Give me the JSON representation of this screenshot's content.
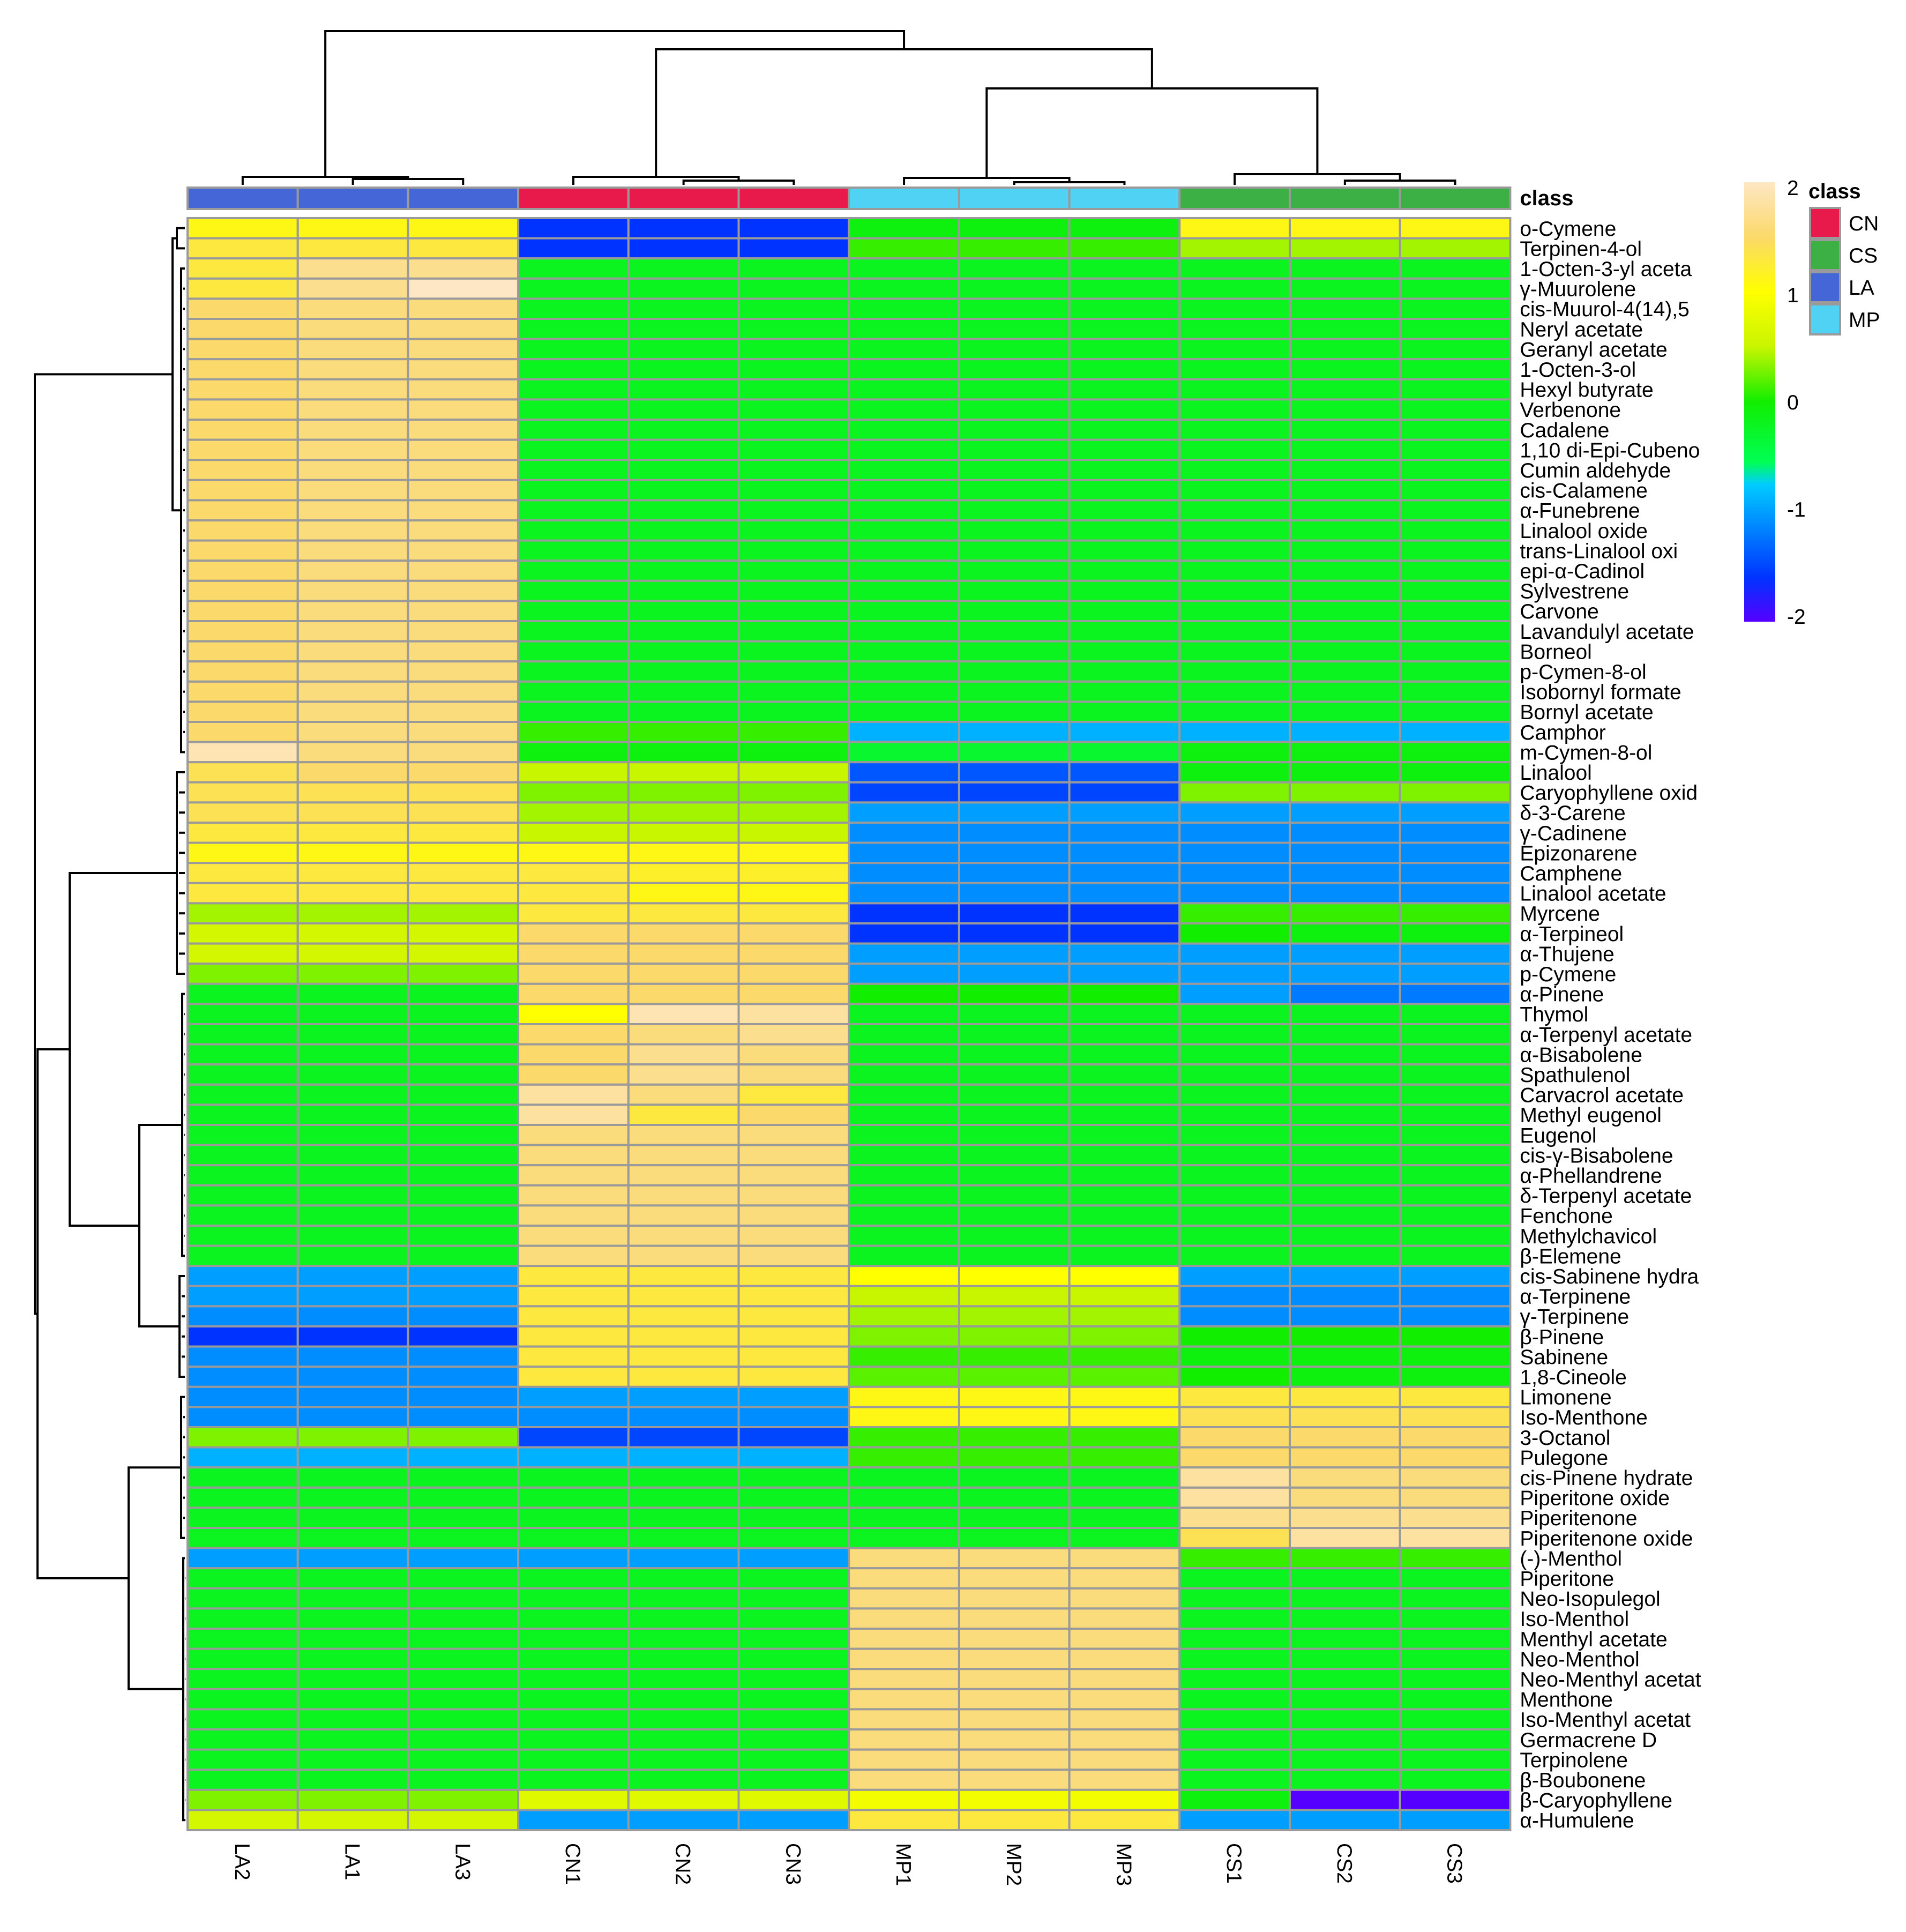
{
  "chart_data": {
    "type": "heatmap",
    "title": "",
    "columns": [
      "LA2",
      "LA1",
      "LA3",
      "CN1",
      "CN2",
      "CN3",
      "MP1",
      "MP2",
      "MP3",
      "CS1",
      "CS2",
      "CS3"
    ],
    "column_classes": [
      "LA",
      "LA",
      "LA",
      "CN",
      "CN",
      "CN",
      "MP",
      "MP",
      "MP",
      "CS",
      "CS",
      "CS"
    ],
    "rows": [
      "o-Cymene",
      "Terpinen-4-ol",
      "1-Octen-3-yl aceta",
      "γ-Muurolene",
      "cis-Muurol-4(14),5",
      "Neryl acetate",
      "Geranyl acetate",
      "1-Octen-3-ol",
      "Hexyl butyrate",
      "Verbenone",
      "Cadalene",
      "1,10 di-Epi-Cubeno",
      "Cumin aldehyde",
      "cis-Calamene",
      "α-Funebrene",
      "Linalool oxide",
      "trans-Linalool oxi",
      "epi-α-Cadinol",
      "Sylvestrene",
      "Carvone",
      "Lavandulyl acetate",
      "Borneol",
      "p-Cymen-8-ol",
      "Isobornyl formate",
      "Bornyl acetate",
      "Camphor",
      "m-Cymen-8-ol",
      "Linalool",
      "Caryophyllene oxid",
      "δ-3-Carene",
      "γ-Cadinene",
      "Epizonarene",
      "Camphene",
      "Linalool acetate",
      "Myrcene",
      "α-Terpineol",
      "α-Thujene",
      "p-Cymene",
      "α-Pinene",
      "Thymol",
      "α-Terpenyl acetate",
      "α-Bisabolene",
      "Spathulenol",
      "Carvacrol acetate",
      "Methyl eugenol",
      "Eugenol",
      "cis-γ-Bisabolene",
      "α-Phellandrene",
      "δ-Terpenyl acetate",
      "Fenchone",
      "Methylchavicol",
      "β-Elemene",
      "cis-Sabinene hydra",
      "α-Terpinene",
      "γ-Terpinene",
      "β-Pinene",
      "Sabinene",
      "1,8-Cineole",
      "Limonene",
      "Iso-Menthone",
      "3-Octanol",
      "Pulegone",
      "cis-Pinene hydrate",
      "Piperitone oxide",
      "Piperitenone",
      "Piperitenone oxide",
      "(-)-Menthol",
      "Piperitone",
      "Neo-Isopulegol",
      "Iso-Menthol",
      "Menthyl acetate",
      "Neo-Menthol",
      "Neo-Menthyl acetat",
      "Menthone",
      "Iso-Menthyl acetat",
      "Germacrene D",
      "Terpinolene",
      "β-Boubonene",
      "β-Caryophyllene",
      "α-Humulene"
    ],
    "values": [
      [
        1.1,
        1.1,
        1.1,
        -1.6,
        -1.6,
        -1.6,
        -0.1,
        -0.1,
        -0.1,
        1.1,
        1.1,
        1.1
      ],
      [
        1.3,
        1.3,
        1.3,
        -1.6,
        -1.6,
        -1.6,
        0.1,
        0.1,
        0.1,
        0.4,
        0.4,
        0.4
      ],
      [
        1.3,
        1.7,
        1.7,
        -0.2,
        -0.2,
        -0.2,
        -0.2,
        -0.2,
        -0.2,
        -0.2,
        -0.2,
        -0.2
      ],
      [
        1.3,
        1.7,
        2.0,
        -0.2,
        -0.2,
        -0.2,
        -0.2,
        -0.2,
        -0.2,
        -0.2,
        -0.2,
        -0.2
      ],
      [
        1.5,
        1.6,
        1.6,
        -0.2,
        -0.2,
        -0.2,
        -0.2,
        -0.2,
        -0.2,
        -0.2,
        -0.2,
        -0.2
      ],
      [
        1.5,
        1.6,
        1.6,
        -0.2,
        -0.2,
        -0.2,
        -0.2,
        -0.2,
        -0.2,
        -0.2,
        -0.2,
        -0.2
      ],
      [
        1.5,
        1.6,
        1.6,
        -0.2,
        -0.2,
        -0.2,
        -0.2,
        -0.2,
        -0.2,
        -0.2,
        -0.2,
        -0.2
      ],
      [
        1.5,
        1.6,
        1.6,
        -0.2,
        -0.2,
        -0.2,
        -0.2,
        -0.2,
        -0.2,
        -0.2,
        -0.2,
        -0.2
      ],
      [
        1.5,
        1.6,
        1.6,
        -0.2,
        -0.2,
        -0.2,
        -0.2,
        -0.2,
        -0.2,
        -0.2,
        -0.2,
        -0.2
      ],
      [
        1.5,
        1.6,
        1.6,
        -0.2,
        -0.2,
        -0.2,
        -0.2,
        -0.2,
        -0.2,
        -0.2,
        -0.2,
        -0.2
      ],
      [
        1.5,
        1.6,
        1.6,
        -0.2,
        -0.2,
        -0.2,
        -0.2,
        -0.2,
        -0.2,
        -0.2,
        -0.2,
        -0.2
      ],
      [
        1.5,
        1.6,
        1.6,
        -0.2,
        -0.2,
        -0.2,
        -0.2,
        -0.2,
        -0.2,
        -0.2,
        -0.2,
        -0.2
      ],
      [
        1.5,
        1.6,
        1.6,
        -0.2,
        -0.2,
        -0.2,
        -0.2,
        -0.2,
        -0.2,
        -0.2,
        -0.2,
        -0.2
      ],
      [
        1.5,
        1.6,
        1.6,
        -0.2,
        -0.2,
        -0.2,
        -0.2,
        -0.2,
        -0.2,
        -0.2,
        -0.2,
        -0.2
      ],
      [
        1.5,
        1.6,
        1.6,
        -0.2,
        -0.2,
        -0.2,
        -0.2,
        -0.2,
        -0.2,
        -0.2,
        -0.2,
        -0.2
      ],
      [
        1.5,
        1.6,
        1.6,
        -0.2,
        -0.2,
        -0.2,
        -0.2,
        -0.2,
        -0.2,
        -0.2,
        -0.2,
        -0.2
      ],
      [
        1.5,
        1.6,
        1.6,
        -0.2,
        -0.2,
        -0.2,
        -0.2,
        -0.2,
        -0.2,
        -0.2,
        -0.2,
        -0.2
      ],
      [
        1.5,
        1.6,
        1.6,
        -0.2,
        -0.2,
        -0.2,
        -0.2,
        -0.2,
        -0.2,
        -0.2,
        -0.2,
        -0.2
      ],
      [
        1.5,
        1.6,
        1.6,
        -0.2,
        -0.2,
        -0.2,
        -0.2,
        -0.2,
        -0.2,
        -0.2,
        -0.2,
        -0.2
      ],
      [
        1.5,
        1.6,
        1.6,
        -0.2,
        -0.2,
        -0.2,
        -0.2,
        -0.2,
        -0.2,
        -0.2,
        -0.2,
        -0.2
      ],
      [
        1.5,
        1.6,
        1.6,
        -0.2,
        -0.2,
        -0.2,
        -0.2,
        -0.2,
        -0.2,
        -0.2,
        -0.2,
        -0.2
      ],
      [
        1.5,
        1.6,
        1.6,
        -0.2,
        -0.2,
        -0.2,
        -0.2,
        -0.2,
        -0.2,
        -0.2,
        -0.2,
        -0.2
      ],
      [
        1.5,
        1.6,
        1.6,
        -0.2,
        -0.2,
        -0.2,
        -0.2,
        -0.2,
        -0.2,
        -0.2,
        -0.2,
        -0.2
      ],
      [
        1.5,
        1.6,
        1.6,
        -0.2,
        -0.2,
        -0.2,
        -0.2,
        -0.2,
        -0.2,
        -0.2,
        -0.2,
        -0.2
      ],
      [
        1.5,
        1.6,
        1.6,
        -0.2,
        -0.2,
        -0.2,
        -0.2,
        -0.2,
        -0.2,
        -0.2,
        -0.2,
        -0.2
      ],
      [
        1.5,
        1.6,
        1.6,
        0.1,
        0.1,
        0.1,
        -0.9,
        -0.9,
        -0.9,
        -0.9,
        -0.9,
        -0.9
      ],
      [
        1.9,
        1.6,
        1.6,
        -0.1,
        -0.1,
        -0.1,
        -0.3,
        -0.3,
        -0.3,
        -0.1,
        -0.1,
        -0.1
      ],
      [
        1.4,
        1.5,
        1.5,
        0.5,
        0.5,
        0.5,
        -1.4,
        -1.4,
        -1.4,
        -0.1,
        -0.1,
        -0.1
      ],
      [
        1.4,
        1.4,
        1.4,
        0.3,
        0.3,
        0.3,
        -1.5,
        -1.5,
        -1.5,
        0.3,
        0.3,
        0.3
      ],
      [
        1.4,
        1.4,
        1.4,
        0.4,
        0.4,
        0.4,
        -1.0,
        -1.0,
        -1.0,
        -1.0,
        -1.0,
        -1.0
      ],
      [
        1.3,
        1.3,
        1.3,
        0.5,
        0.5,
        0.5,
        -1.1,
        -1.1,
        -1.1,
        -1.1,
        -1.1,
        -1.1
      ],
      [
        1.1,
        1.1,
        1.1,
        1.1,
        1.1,
        1.1,
        -1.1,
        -1.1,
        -1.1,
        -1.1,
        -1.1,
        -1.1
      ],
      [
        1.3,
        1.3,
        1.3,
        1.3,
        1.2,
        1.2,
        -1.1,
        -1.1,
        -1.1,
        -1.1,
        -1.1,
        -1.1
      ],
      [
        1.3,
        1.3,
        1.3,
        1.3,
        1.1,
        1.1,
        -1.1,
        -1.1,
        -1.1,
        -1.1,
        -1.1,
        -1.1
      ],
      [
        0.4,
        0.4,
        0.4,
        1.3,
        1.3,
        1.3,
        -1.6,
        -1.6,
        -1.6,
        0.1,
        0.1,
        0.1
      ],
      [
        0.6,
        0.6,
        0.6,
        1.5,
        1.5,
        1.5,
        -1.6,
        -1.6,
        -1.6,
        0.0,
        -0.1,
        -0.1
      ],
      [
        0.6,
        0.6,
        0.6,
        1.5,
        1.5,
        1.5,
        -1.0,
        -1.0,
        -1.0,
        -1.0,
        -1.0,
        -1.0
      ],
      [
        0.3,
        0.3,
        0.3,
        1.5,
        1.5,
        1.5,
        -1.0,
        -1.0,
        -1.0,
        -1.0,
        -1.0,
        -1.0
      ],
      [
        -0.2,
        -0.2,
        -0.2,
        1.5,
        1.5,
        1.5,
        0.0,
        0.0,
        0.0,
        -1.0,
        -1.2,
        -1.2
      ],
      [
        -0.2,
        -0.2,
        -0.2,
        1.0,
        1.9,
        1.8,
        -0.2,
        -0.2,
        -0.2,
        -0.2,
        -0.2,
        -0.2
      ],
      [
        -0.2,
        -0.2,
        -0.2,
        1.5,
        1.6,
        1.7,
        -0.2,
        -0.2,
        -0.2,
        -0.2,
        -0.2,
        -0.2
      ],
      [
        -0.2,
        -0.2,
        -0.2,
        1.5,
        1.7,
        1.6,
        -0.2,
        -0.2,
        -0.2,
        -0.2,
        -0.2,
        -0.2
      ],
      [
        -0.2,
        -0.2,
        -0.2,
        1.5,
        1.7,
        1.6,
        -0.2,
        -0.2,
        -0.2,
        -0.2,
        -0.2,
        -0.2
      ],
      [
        -0.2,
        -0.2,
        -0.2,
        1.8,
        1.6,
        1.3,
        -0.2,
        -0.2,
        -0.2,
        -0.2,
        -0.2,
        -0.2
      ],
      [
        -0.2,
        -0.2,
        -0.2,
        1.8,
        1.3,
        1.5,
        -0.2,
        -0.2,
        -0.2,
        -0.2,
        -0.2,
        -0.2
      ],
      [
        -0.2,
        -0.2,
        -0.2,
        1.6,
        1.6,
        1.6,
        -0.2,
        -0.2,
        -0.2,
        -0.2,
        -0.2,
        -0.2
      ],
      [
        -0.2,
        -0.2,
        -0.2,
        1.6,
        1.6,
        1.6,
        -0.2,
        -0.2,
        -0.2,
        -0.2,
        -0.2,
        -0.2
      ],
      [
        -0.2,
        -0.2,
        -0.2,
        1.6,
        1.6,
        1.6,
        -0.2,
        -0.2,
        -0.2,
        -0.2,
        -0.2,
        -0.2
      ],
      [
        -0.2,
        -0.2,
        -0.2,
        1.6,
        1.6,
        1.6,
        -0.2,
        -0.2,
        -0.2,
        -0.2,
        -0.2,
        -0.2
      ],
      [
        -0.2,
        -0.2,
        -0.2,
        1.6,
        1.6,
        1.6,
        -0.2,
        -0.2,
        -0.2,
        -0.2,
        -0.2,
        -0.2
      ],
      [
        -0.2,
        -0.2,
        -0.2,
        1.6,
        1.6,
        1.6,
        -0.2,
        -0.2,
        -0.2,
        -0.2,
        -0.2,
        -0.2
      ],
      [
        -0.2,
        -0.2,
        -0.2,
        1.6,
        1.6,
        1.6,
        -0.2,
        -0.2,
        -0.2,
        -0.2,
        -0.2,
        -0.2
      ],
      [
        -1.0,
        -1.0,
        -1.0,
        1.3,
        1.3,
        1.3,
        1.0,
        1.0,
        1.0,
        -1.0,
        -1.0,
        -1.0
      ],
      [
        -1.0,
        -1.0,
        -1.0,
        1.3,
        1.3,
        1.3,
        0.5,
        0.5,
        0.5,
        -1.1,
        -1.1,
        -1.1
      ],
      [
        -1.1,
        -1.1,
        -1.1,
        1.3,
        1.3,
        1.3,
        0.4,
        0.4,
        0.4,
        -1.1,
        -1.1,
        -1.1
      ],
      [
        -1.6,
        -1.6,
        -1.6,
        1.3,
        1.3,
        1.3,
        0.3,
        0.3,
        0.3,
        0.0,
        0.0,
        0.0
      ],
      [
        -1.1,
        -1.1,
        -1.1,
        1.3,
        1.3,
        1.3,
        0.1,
        0.1,
        0.1,
        -0.1,
        -0.1,
        -0.1
      ],
      [
        -1.1,
        -1.1,
        -1.1,
        1.3,
        1.3,
        1.3,
        0.2,
        0.2,
        0.2,
        0.0,
        -0.1,
        -0.1
      ],
      [
        -1.1,
        -1.1,
        -1.1,
        -1.0,
        -1.0,
        -1.0,
        1.1,
        1.1,
        1.1,
        1.3,
        1.3,
        1.3
      ],
      [
        -1.1,
        -1.1,
        -1.1,
        -1.1,
        -1.1,
        -1.1,
        1.1,
        1.1,
        1.1,
        1.4,
        1.4,
        1.4
      ],
      [
        0.3,
        0.3,
        0.3,
        -1.5,
        -1.5,
        -1.5,
        0.1,
        0.1,
        0.1,
        1.5,
        1.5,
        1.5
      ],
      [
        -0.9,
        -0.9,
        -0.9,
        -0.9,
        -0.9,
        -0.9,
        0.1,
        0.1,
        0.1,
        1.5,
        1.5,
        1.5
      ],
      [
        -0.2,
        -0.2,
        -0.2,
        -0.2,
        -0.2,
        -0.2,
        -0.2,
        -0.2,
        -0.2,
        1.8,
        1.6,
        1.6
      ],
      [
        -0.2,
        -0.2,
        -0.2,
        -0.2,
        -0.2,
        -0.2,
        -0.2,
        -0.2,
        -0.2,
        1.8,
        1.6,
        1.6
      ],
      [
        -0.2,
        -0.2,
        -0.2,
        -0.2,
        -0.2,
        -0.2,
        -0.2,
        -0.2,
        -0.2,
        1.7,
        1.7,
        1.7
      ],
      [
        -0.2,
        -0.2,
        -0.2,
        -0.2,
        -0.2,
        -0.2,
        -0.2,
        -0.2,
        -0.2,
        1.4,
        1.8,
        1.8
      ],
      [
        -1.0,
        -1.0,
        -1.0,
        -1.0,
        -1.0,
        -1.0,
        1.6,
        1.6,
        1.6,
        0.1,
        0.1,
        0.1
      ],
      [
        -0.2,
        -0.2,
        -0.2,
        -0.2,
        -0.2,
        -0.2,
        1.6,
        1.6,
        1.6,
        -0.2,
        -0.2,
        -0.2
      ],
      [
        -0.2,
        -0.2,
        -0.2,
        -0.2,
        -0.2,
        -0.2,
        1.6,
        1.6,
        1.6,
        -0.2,
        -0.2,
        -0.2
      ],
      [
        -0.2,
        -0.2,
        -0.2,
        -0.2,
        -0.2,
        -0.2,
        1.6,
        1.6,
        1.6,
        -0.2,
        -0.2,
        -0.2
      ],
      [
        -0.2,
        -0.2,
        -0.2,
        -0.2,
        -0.2,
        -0.2,
        1.6,
        1.6,
        1.6,
        -0.2,
        -0.2,
        -0.2
      ],
      [
        -0.2,
        -0.2,
        -0.2,
        -0.2,
        -0.2,
        -0.2,
        1.6,
        1.6,
        1.6,
        -0.2,
        -0.2,
        -0.2
      ],
      [
        -0.2,
        -0.2,
        -0.2,
        -0.2,
        -0.2,
        -0.2,
        1.6,
        1.6,
        1.6,
        -0.2,
        -0.2,
        -0.2
      ],
      [
        -0.2,
        -0.2,
        -0.2,
        -0.2,
        -0.2,
        -0.2,
        1.6,
        1.6,
        1.6,
        -0.2,
        -0.2,
        -0.2
      ],
      [
        -0.2,
        -0.2,
        -0.2,
        -0.2,
        -0.2,
        -0.2,
        1.6,
        1.6,
        1.6,
        -0.2,
        -0.2,
        -0.2
      ],
      [
        -0.2,
        -0.2,
        -0.2,
        -0.2,
        -0.2,
        -0.2,
        1.6,
        1.6,
        1.6,
        -0.2,
        -0.2,
        -0.2
      ],
      [
        -0.2,
        -0.2,
        -0.2,
        -0.2,
        -0.2,
        -0.2,
        1.6,
        1.6,
        1.6,
        -0.2,
        -0.2,
        -0.2
      ],
      [
        -0.2,
        -0.2,
        -0.2,
        -0.2,
        -0.2,
        -0.2,
        1.6,
        1.6,
        1.6,
        -0.2,
        -0.2,
        -0.2
      ],
      [
        0.3,
        0.3,
        0.3,
        0.7,
        0.7,
        0.7,
        0.9,
        0.9,
        0.9,
        -0.1,
        -2.0,
        -2.0
      ],
      [
        0.6,
        0.6,
        0.6,
        -1.0,
        -1.0,
        -1.0,
        1.3,
        1.3,
        1.3,
        -1.0,
        -1.0,
        -1.0
      ]
    ],
    "color_scale": {
      "min": -2,
      "max": 2,
      "ticks": [
        "2",
        "1",
        "0",
        "-1",
        "-2"
      ],
      "stops": [
        {
          "value": -2.0,
          "color": "#5500ff"
        },
        {
          "value": -1.6,
          "color": "#0033ff"
        },
        {
          "value": -0.75,
          "color": "#00ccff"
        },
        {
          "value": -0.55,
          "color": "#00ff55"
        },
        {
          "value": 0.0,
          "color": "#11ee00"
        },
        {
          "value": 0.5,
          "color": "#c8f500"
        },
        {
          "value": 1.0,
          "color": "#ffff00"
        },
        {
          "value": 1.5,
          "color": "#fbd96a"
        },
        {
          "value": 2.0,
          "color": "#fde7c4"
        }
      ]
    },
    "annotation": {
      "title": "class",
      "legend_title": "class",
      "classes": [
        {
          "name": "CN",
          "color": "#e8194b"
        },
        {
          "name": "CS",
          "color": "#3cb045"
        },
        {
          "name": "LA",
          "color": "#4566d6"
        },
        {
          "name": "MP",
          "color": "#4fd2f4"
        }
      ]
    },
    "column_dendrogram": "((LA2,(LA1,LA3)),((CN1,(CN2,CN3)),((MP1,(MP2,MP3)),(CS1,(CS2,CS3)))))",
    "row_dendrogram": "(((o-Cymene,Terpinen-4-ol),(LA-specific cluster)),(((Camphor..p-Cymene)),((α-Pinene..β-Elemene),(cis-Sabinene hydra..1,8-Cineole))),((Limonene..Piperitenone oxide),((-)-Menthol..α-Humulene)))"
  }
}
